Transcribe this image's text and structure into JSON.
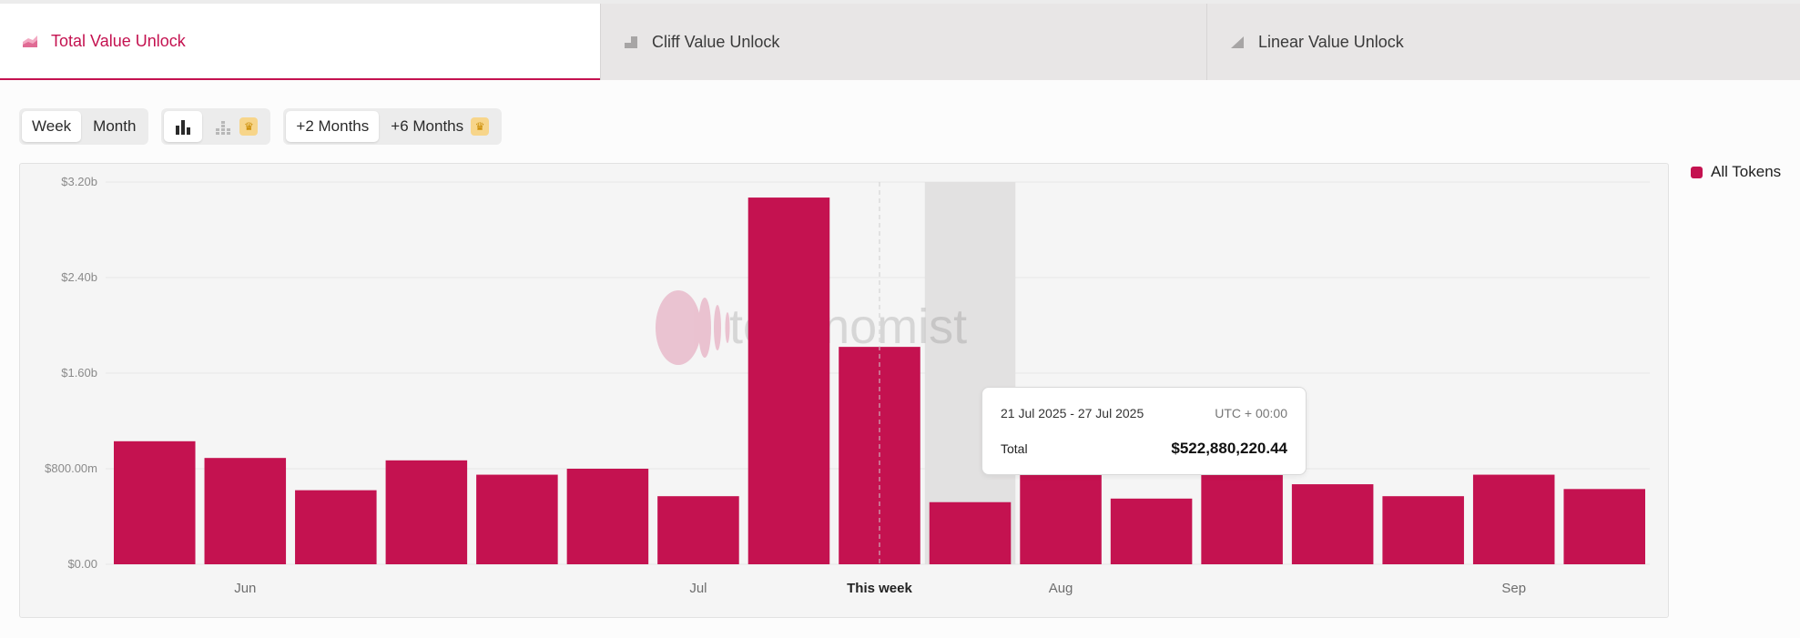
{
  "tabs": [
    {
      "label": "Total Value Unlock",
      "icon": "stacked-area-icon",
      "active": true
    },
    {
      "label": "Cliff Value Unlock",
      "icon": "step-icon",
      "active": false
    },
    {
      "label": "Linear Value Unlock",
      "icon": "ramp-icon",
      "active": false
    }
  ],
  "controls": {
    "period": [
      "Week",
      "Month"
    ],
    "range": [
      "+2 Months",
      "+6 Months"
    ]
  },
  "colors": {
    "accent": "#c41250",
    "grid": "#e6e6e6",
    "highlight": "#e2e1e1"
  },
  "legend": {
    "label": "All Tokens"
  },
  "watermark": "tokenomist",
  "tooltip": {
    "range": "21 Jul 2025 - 27 Jul 2025",
    "timezone": "UTC + 00:00",
    "label": "Total",
    "value": "$522,880,220.44"
  },
  "chart_data": {
    "type": "bar",
    "series": [
      {
        "name": "All Tokens",
        "values": [
          1.03,
          0.89,
          0.62,
          0.87,
          0.75,
          0.8,
          0.57,
          3.07,
          1.82,
          0.52,
          0.78,
          0.55,
          0.81,
          0.67,
          0.57,
          0.75,
          0.63
        ]
      }
    ],
    "unit": "billions USD",
    "ylim": [
      0,
      3.2
    ],
    "yticks": [
      {
        "value": 0,
        "label": "$0.00"
      },
      {
        "value": 0.8,
        "label": "$800.00m"
      },
      {
        "value": 1.6,
        "label": "$1.60b"
      },
      {
        "value": 2.4,
        "label": "$2.40b"
      },
      {
        "value": 3.2,
        "label": "$3.20b"
      }
    ],
    "xticks": [
      {
        "index": 1.5,
        "label": "Jun"
      },
      {
        "index": 6.5,
        "label": "Jul"
      },
      {
        "index": 8.5,
        "label": "This week"
      },
      {
        "index": 10.5,
        "label": "Aug"
      },
      {
        "index": 15.5,
        "label": "Sep"
      }
    ],
    "current_week_index": 8,
    "highlight_index": 9
  }
}
